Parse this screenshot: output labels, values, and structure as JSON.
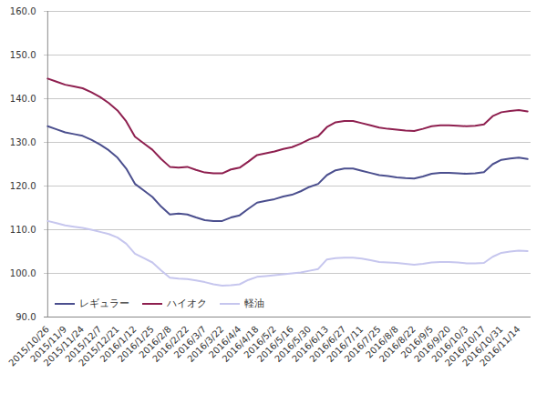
{
  "chart_data": {
    "type": "line",
    "categories": [
      "2015/10/26",
      null,
      "2015/11/9",
      null,
      "2015/11/24",
      null,
      "2015/12/7",
      null,
      "2015/12/21",
      null,
      "2016/1/12",
      null,
      "2016/1/25",
      null,
      "2016/2/8",
      null,
      "2016/2/22",
      null,
      "2016/3/7",
      null,
      "2016/3/22",
      null,
      "2016/4/4",
      null,
      "2016/4/18",
      null,
      "2016/5/2",
      null,
      "2016/5/16",
      null,
      "2016/5/30",
      null,
      "2016/6/13",
      null,
      "2016/6/27",
      null,
      "2016/7/11",
      null,
      "2016/7/25",
      null,
      "2016/8/8",
      null,
      "2016/8/22",
      null,
      "2016/9/5",
      null,
      "2016/9/20",
      null,
      "2016/10/3",
      null,
      "2016/10/17",
      null,
      "2016/10/31",
      null,
      "2016/11/14",
      null
    ],
    "series": [
      {
        "name": "レギュラー",
        "color": "#4b4f8e",
        "values": [
          133.7,
          133.0,
          132.3,
          131.9,
          131.5,
          130.6,
          129.5,
          128.2,
          126.5,
          124.0,
          120.5,
          119.0,
          117.5,
          115.3,
          113.5,
          113.7,
          113.5,
          112.8,
          112.2,
          112.0,
          112.0,
          112.8,
          113.3,
          114.8,
          116.2,
          116.6,
          117.0,
          117.6,
          118.0,
          118.8,
          119.8,
          120.5,
          122.5,
          123.6,
          124.0,
          124.0,
          123.5,
          123.0,
          122.5,
          122.3,
          122.0,
          121.8,
          121.7,
          122.2,
          122.8,
          123.0,
          123.0,
          122.9,
          122.8,
          122.9,
          123.2,
          125.0,
          126.0,
          126.3,
          126.5,
          126.2
        ]
      },
      {
        "name": "ハイオク",
        "color": "#8e1f4f",
        "values": [
          144.6,
          143.9,
          143.2,
          142.8,
          142.4,
          141.5,
          140.4,
          139.0,
          137.3,
          134.8,
          131.3,
          129.8,
          128.3,
          126.2,
          124.4,
          124.2,
          124.4,
          123.7,
          123.1,
          122.9,
          122.9,
          123.8,
          124.2,
          125.6,
          127.1,
          127.5,
          127.9,
          128.5,
          128.9,
          129.7,
          130.7,
          131.4,
          133.5,
          134.6,
          134.9,
          134.9,
          134.4,
          133.9,
          133.4,
          133.1,
          132.9,
          132.7,
          132.6,
          133.1,
          133.7,
          133.9,
          133.9,
          133.8,
          133.7,
          133.8,
          134.1,
          136.0,
          136.9,
          137.2,
          137.4,
          137.1
        ]
      },
      {
        "name": "軽油",
        "color": "#c6c6ee",
        "values": [
          112.0,
          111.5,
          111.0,
          110.7,
          110.4,
          110.0,
          109.5,
          109.0,
          108.2,
          106.8,
          104.5,
          103.5,
          102.5,
          100.7,
          99.0,
          98.8,
          98.7,
          98.4,
          98.0,
          97.5,
          97.2,
          97.3,
          97.5,
          98.5,
          99.2,
          99.4,
          99.6,
          99.8,
          100.0,
          100.2,
          100.6,
          101.0,
          103.2,
          103.5,
          103.6,
          103.6,
          103.4,
          103.0,
          102.6,
          102.5,
          102.4,
          102.2,
          102.0,
          102.2,
          102.5,
          102.6,
          102.6,
          102.5,
          102.3,
          102.3,
          102.4,
          103.8,
          104.7,
          105.0,
          105.2,
          105.1
        ]
      }
    ],
    "ylim": [
      90,
      160
    ],
    "yticks": [
      {
        "value": 90,
        "label": "90.0"
      },
      {
        "value": 100,
        "label": "100.0"
      },
      {
        "value": 110,
        "label": "110.0"
      },
      {
        "value": 120,
        "label": "120.0"
      },
      {
        "value": 130,
        "label": "130.0"
      },
      {
        "value": 140,
        "label": "140.0"
      },
      {
        "value": 150,
        "label": "150.0"
      },
      {
        "value": 160,
        "label": "160.0"
      }
    ],
    "grid": true,
    "legend": "lower left"
  }
}
